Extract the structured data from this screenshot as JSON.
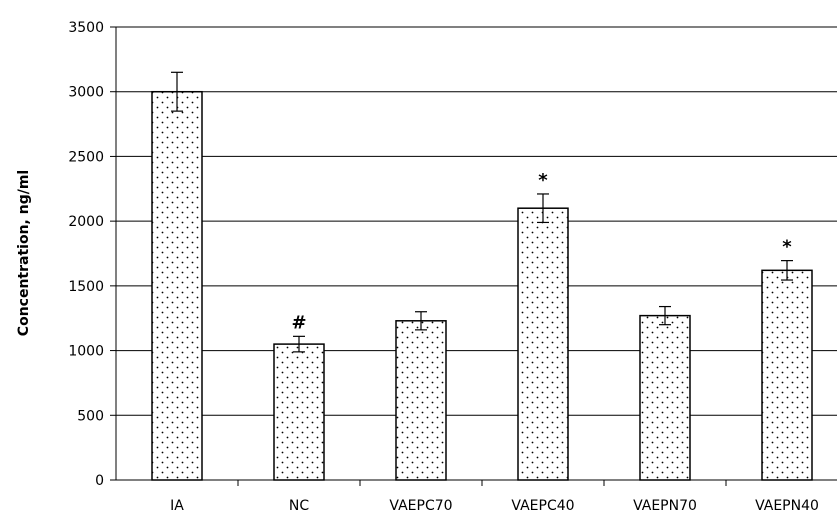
{
  "chart_data": {
    "type": "bar",
    "categories": [
      "IA",
      "NC",
      "VAEPC70",
      "VAEPC40",
      "VAEPN70",
      "VAEPN40"
    ],
    "values": [
      3000,
      1050,
      1230,
      2100,
      1270,
      1620
    ],
    "error": [
      150,
      60,
      70,
      110,
      70,
      75
    ],
    "annotations": [
      "",
      "#",
      "",
      "*",
      "",
      "*"
    ],
    "title": "",
    "xlabel": "",
    "ylabel": "Concentration, ng/ml",
    "ylim": [
      0,
      3500
    ],
    "yticks": [
      0,
      500,
      1000,
      1500,
      2000,
      2500,
      3000,
      3500
    ],
    "grid": true,
    "legend": "none",
    "bar_pattern": "dotted",
    "colors": {
      "bar_fill": "#ffffff",
      "bar_stroke": "#000000",
      "dot": "#000000",
      "grid": "#000000",
      "axis": "#000000"
    }
  }
}
